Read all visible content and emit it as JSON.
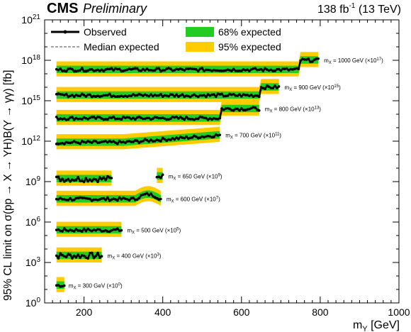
{
  "header": {
    "cms": "CMS",
    "preliminary": "Preliminary",
    "lumi_value": "138 fb",
    "lumi_exp": "-1",
    "lumi_energy": " (13 TeV)"
  },
  "axes": {
    "ylabel": "95% CL limit on σ(pp → X → YH)B(Y → γγ) [fb]",
    "xlabel_main": "m",
    "xlabel_sub": "Y",
    "xlabel_unit": " [GeV]"
  },
  "legend": {
    "observed": "Observed",
    "median": "Median expected",
    "band68": "68% expected",
    "band95": "95% expected"
  },
  "colors": {
    "band68": "#22cc22",
    "band95": "#ffcc00",
    "observed": "#000000",
    "median": "#333333"
  },
  "chart_data": {
    "type": "line",
    "xlim": [
      100,
      1000
    ],
    "xticks": [
      200,
      400,
      600,
      800,
      1000
    ],
    "ylog": true,
    "ylim_exp": [
      0,
      21
    ],
    "yticks_exp": [
      0,
      3,
      6,
      9,
      12,
      15,
      18,
      21
    ],
    "series": [
      {
        "mx_label": "m",
        "mx_sub": "X",
        "label_text": " = 300 GeV (×10",
        "label_exp": "0",
        "x_start": 130,
        "x_end": 150,
        "log_center": 1.3,
        "shape": "small"
      },
      {
        "mx_label": "m",
        "mx_sub": "X",
        "label_text": " = 400 GeV (×10",
        "label_exp": "3",
        "x_start": 130,
        "x_end": 245,
        "log_center": 3.5,
        "shape": "rough"
      },
      {
        "mx_label": "m",
        "mx_sub": "X",
        "label_text": " = 500 GeV (×10",
        "label_exp": "5",
        "x_start": 130,
        "x_end": 295,
        "log_center": 5.4,
        "shape": "flat"
      },
      {
        "mx_label": "m",
        "mx_sub": "X",
        "label_text": " = 600 GeV (×10",
        "label_exp": "7",
        "x_start": 130,
        "x_end": 395,
        "log_center": 7.7,
        "shape": "bump"
      },
      {
        "mx_label": "m",
        "mx_sub": "X",
        "label_text": " = 650 GeV (×10",
        "label_exp": "9",
        "x_start": 130,
        "x_end": 270,
        "log_center": 9.2,
        "shape": "rough",
        "extra_start": 385,
        "extra_end": 400,
        "extra_center": 9.4
      },
      {
        "mx_label": "m",
        "mx_sub": "X",
        "label_text": " = 700 GeV (×10",
        "label_exp": "11",
        "x_start": 130,
        "x_end": 545,
        "log_center": 11.9,
        "shape": "rise"
      },
      {
        "mx_label": "m",
        "mx_sub": "X",
        "label_text": " = 800 GeV (×10",
        "label_exp": "13",
        "x_start": 130,
        "x_end": 645,
        "log_center": 13.7,
        "shape": "step",
        "step_x": 550,
        "step_val": 14.4
      },
      {
        "mx_label": "m",
        "mx_sub": "X",
        "label_text": " = 900 GeV (×10",
        "label_exp": "15",
        "x_start": 130,
        "x_end": 695,
        "log_center": 15.4,
        "shape": "step",
        "step_x": 650,
        "step_val": 16.0
      },
      {
        "mx_label": "m",
        "mx_sub": "X",
        "label_text": " = 1000 GeV (×10",
        "label_exp": "17",
        "x_start": 130,
        "x_end": 795,
        "log_center": 17.3,
        "shape": "step",
        "step_x": 750,
        "step_val": 18.0
      }
    ]
  }
}
